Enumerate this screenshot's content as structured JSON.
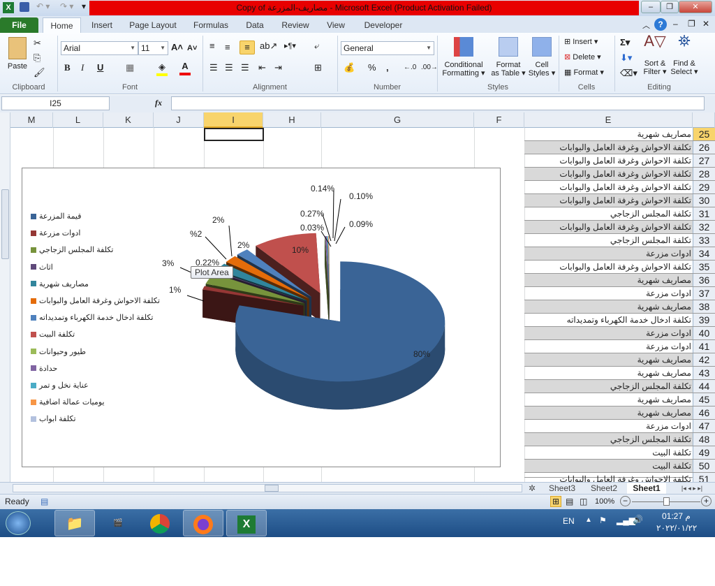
{
  "window": {
    "title": "Copy of مصاريف-المزرعة  -  Microsoft Excel (Product Activation Failed)",
    "title_bar_color": "#e80000"
  },
  "tabs": [
    "File",
    "Home",
    "Insert",
    "Page Layout",
    "Formulas",
    "Data",
    "Review",
    "View",
    "Developer"
  ],
  "ribbon": {
    "clipboard": {
      "label": "Clipboard",
      "paste": "Paste"
    },
    "font": {
      "label": "Font",
      "name": "Arial",
      "size": "11",
      "bold": "B",
      "italic": "I",
      "underline": "U"
    },
    "alignment": {
      "label": "Alignment"
    },
    "number": {
      "label": "Number",
      "format": "General",
      "percent": "%",
      "comma": ","
    },
    "styles": {
      "label": "Styles",
      "conditional": [
        "Conditional",
        "Formatting ▾"
      ],
      "format_table": [
        "Format",
        "as Table ▾"
      ],
      "cell_styles": [
        "Cell",
        "Styles ▾"
      ]
    },
    "cells": {
      "label": "Cells",
      "insert": "Insert ▾",
      "delete": "Delete ▾",
      "format": "Format ▾"
    },
    "editing": {
      "label": "Editing",
      "sort": [
        "Sort &",
        "Filter ▾"
      ],
      "find": [
        "Find &",
        "Select ▾"
      ]
    }
  },
  "formula_bar": {
    "name_box": "I25",
    "fx": "fx",
    "value": ""
  },
  "columns": [
    "M",
    "L",
    "K",
    "J",
    "I",
    "H",
    "G",
    "F",
    "E"
  ],
  "selected_column": "I",
  "rows": [
    {
      "n": "25",
      "text": "مصاريف شهرية"
    },
    {
      "n": "26",
      "text": "تكلفة الاحواش وغرفة العامل والبوابات"
    },
    {
      "n": "27",
      "text": "تكلفة الاحواش وغرفة العامل والبوابات"
    },
    {
      "n": "28",
      "text": "تكلفة الاحواش وغرفة العامل والبوابات"
    },
    {
      "n": "29",
      "text": "تكلفة الاحواش وغرفة العامل والبوابات"
    },
    {
      "n": "30",
      "text": "تكلفة الاحواش وغرفة العامل والبوابات"
    },
    {
      "n": "31",
      "text": "تكلفة المجلس الزجاجي"
    },
    {
      "n": "32",
      "text": "تكلفة الاحواش وغرفة العامل والبوابات"
    },
    {
      "n": "33",
      "text": "تكلفة المجلس الزجاجي"
    },
    {
      "n": "34",
      "text": "ادوات مزرعة"
    },
    {
      "n": "35",
      "text": "تكلفة الاحواش وغرفة العامل والبوابات"
    },
    {
      "n": "36",
      "text": "مصاريف شهرية"
    },
    {
      "n": "37",
      "text": "ادوات مزرعة"
    },
    {
      "n": "38",
      "text": "مصاريف شهرية"
    },
    {
      "n": "39",
      "text": "تكلفة ادخال خدمة الكهرباء وتمديداته"
    },
    {
      "n": "40",
      "text": "ادوات مزرعة"
    },
    {
      "n": "41",
      "text": "ادوات مزرعة"
    },
    {
      "n": "42",
      "text": "مصاريف شهرية"
    },
    {
      "n": "43",
      "text": "مصاريف شهرية"
    },
    {
      "n": "44",
      "text": "تكلفة المجلس الزجاجي"
    },
    {
      "n": "45",
      "text": "مصاريف شهرية"
    },
    {
      "n": "46",
      "text": "مصاريف شهرية"
    },
    {
      "n": "47",
      "text": "ادوات مزرعة"
    },
    {
      "n": "48",
      "text": "تكلفة المجلس الزجاجي"
    },
    {
      "n": "49",
      "text": "تكلفة البيت"
    },
    {
      "n": "50",
      "text": "تكلفة البيت"
    },
    {
      "n": "51",
      "text": "تكلفة الاحواش وغرفة العامل والبوابات"
    }
  ],
  "chart_data": {
    "type": "pie",
    "three_d": true,
    "legend_placement": "left",
    "categories": [
      "قيمة المزرعة",
      "ادوات مزرعة",
      "تكلفة المجلس الزجاجي",
      "اثاث",
      "مصاريف شهرية",
      "تكلفة الاحواش وغرفة العامل والبوابات",
      "تكلفة ادخال خدمة الكهرباء وتمديداته",
      "تكلفة البيت",
      "طيور وحيوانات",
      "حدادة",
      "عناية نخل و تمر",
      "يوميات عمالة اضافية",
      "تكلفة ابواب"
    ],
    "values": [
      80,
      1,
      3,
      0.22,
      2,
      2,
      2,
      10,
      0.03,
      0.27,
      0.14,
      0.1,
      0.09
    ],
    "data_labels": [
      "80%",
      "1%",
      "3%",
      "0.22%",
      "%2",
      "2%",
      "2%",
      "10%",
      "0.03%",
      "0.27%",
      "0.14%",
      "0.10%",
      "0.09%"
    ],
    "colors": [
      "#3a6496",
      "#953735",
      "#77933c",
      "#5f497a",
      "#31859c",
      "#e46c0a",
      "#4f81bd",
      "#c0504d",
      "#9bbb59",
      "#8064a2",
      "#4bacc6",
      "#f79646",
      "#b3c1de"
    ]
  },
  "tooltip": "Plot Area",
  "sheets": [
    "Sheet3",
    "Sheet2",
    "Sheet1"
  ],
  "active_sheet": "Sheet1",
  "status": {
    "ready": "Ready",
    "zoom": "100%"
  },
  "taskbar": {
    "lang": "EN",
    "time": "01:27 م",
    "date": "٢٠٢٢/٠١/٢٢"
  }
}
